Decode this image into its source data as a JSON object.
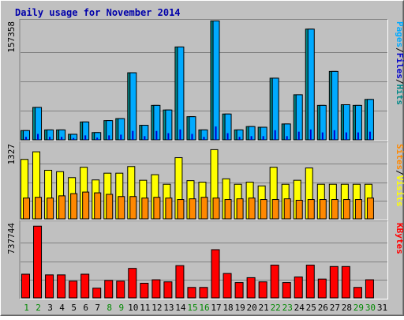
{
  "chart_data": {
    "type": "bar",
    "title": "Daily usage for November 2014",
    "x": [
      "1",
      "2",
      "3",
      "4",
      "5",
      "6",
      "7",
      "8",
      "9",
      "10",
      "11",
      "12",
      "13",
      "14",
      "15",
      "16",
      "17",
      "18",
      "19",
      "20",
      "21",
      "22",
      "23",
      "24",
      "25",
      "26",
      "27",
      "28",
      "29",
      "30",
      "31"
    ],
    "weekend_days": [
      "1",
      "2",
      "8",
      "9",
      "15",
      "16",
      "22",
      "23",
      "29",
      "30"
    ],
    "panels": [
      {
        "id": "hits-files-pages",
        "max_label": "157358",
        "ymax": 157358,
        "grid": true,
        "side_label": [
          {
            "text": "Pages",
            "color": "#00aaff"
          },
          {
            "text": "/",
            "color": "#000000"
          },
          {
            "text": "Files",
            "color": "#0000cc"
          },
          {
            "text": "/",
            "color": "#000000"
          },
          {
            "text": "Hits",
            "color": "#008888"
          }
        ],
        "series": [
          {
            "color": "#008888",
            "values": [
              12500,
              43700,
              13400,
              13400,
              7500,
              24100,
              9800,
              25900,
              28600,
              90300,
              19600,
              46400,
              40200,
              125000,
              31200,
              13400,
              160000,
              34800,
              13400,
              17900,
              17000,
              83000,
              21400,
              60700,
              149000,
              46400,
              92100,
              47300,
              46400,
              54400,
              0
            ]
          },
          {
            "color": "#00aaff",
            "values": [
              12500,
              43700,
              13400,
              13400,
              7500,
              24100,
              9800,
              25900,
              28600,
              90300,
              19600,
              46400,
              40200,
              125000,
              31200,
              13400,
              160000,
              34800,
              13400,
              17900,
              17000,
              83000,
              21400,
              60700,
              149000,
              46400,
              92100,
              47300,
              46400,
              54400,
              0
            ]
          },
          {
            "color": "#0000cc",
            "values": [
              4000,
              8000,
              4000,
              4000,
              2500,
              6000,
              3000,
              6000,
              7000,
              12000,
              5000,
              12000,
              9000,
              14000,
              8000,
              4000,
              18000,
              9000,
              4000,
              5000,
              5000,
              13000,
              5000,
              11000,
              14000,
              10000,
              13000,
              10000,
              10000,
              11000,
              0
            ]
          }
        ]
      },
      {
        "id": "visits-sites",
        "max_label": "1327",
        "ymax": 1327,
        "grid": true,
        "side_label": [
          {
            "text": "Sites",
            "color": "#ff8800"
          },
          {
            "text": "/",
            "color": "#000000"
          },
          {
            "text": "Visits",
            "color": "#ffff00"
          }
        ],
        "series": [
          {
            "color": "#ffff00",
            "values": [
              1074,
              1211,
              878,
              852,
              745,
              932,
              703,
              825,
              825,
              945,
              697,
              798,
              625,
              1105,
              690,
              663,
              1250,
              723,
              625,
              663,
              595,
              932,
              625,
              697,
              919,
              625,
              625,
              625,
              625,
              625,
              0
            ]
          },
          {
            "color": "#ff8800",
            "values": [
              376,
              389,
              376,
              416,
              456,
              484,
              470,
              443,
              403,
              403,
              376,
              389,
              376,
              349,
              362,
              389,
              376,
              349,
              362,
              376,
              349,
              349,
              362,
              336,
              349,
              349,
              349,
              349,
              349,
              376,
              0
            ]
          }
        ]
      },
      {
        "id": "kbytes",
        "max_label": "737744",
        "ymax": 737744,
        "grid": true,
        "side_label": [
          {
            "text": "KBytes",
            "color": "#ff0000"
          }
        ],
        "series": [
          {
            "color": "#ff0000",
            "values": [
              238000,
              720000,
              231000,
              231000,
              168000,
              238000,
              98000,
              175000,
              168000,
              296000,
              147000,
              182000,
              161000,
              324000,
              105000,
              105000,
              484000,
              245000,
              154000,
              203000,
              161000,
              329000,
              154000,
              210000,
              329000,
              189000,
              315000,
              315000,
              105000,
              182000,
              0
            ]
          }
        ]
      }
    ]
  }
}
